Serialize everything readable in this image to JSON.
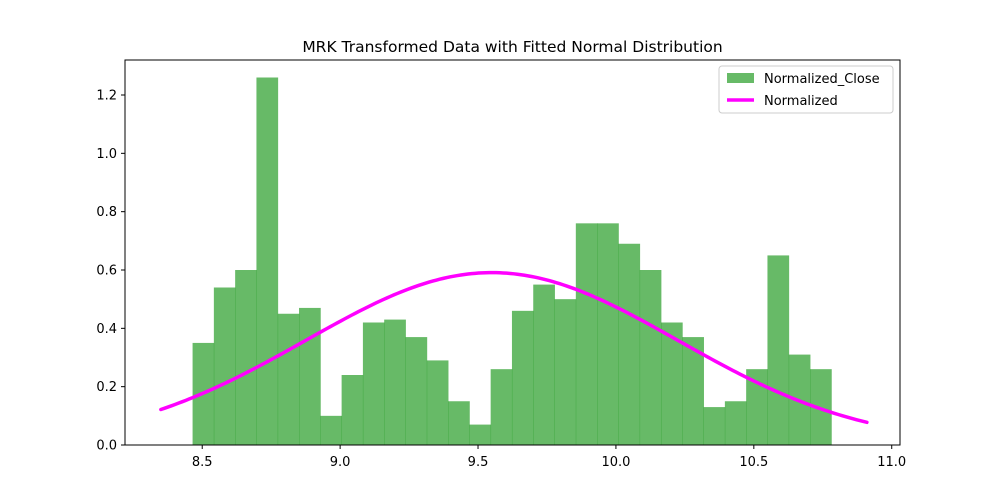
{
  "chart_data": {
    "type": "bar",
    "title": "MRK Transformed Data with Fitted Normal Distribution",
    "xlabel": "",
    "ylabel": "",
    "xlim": [
      8.22,
      11.03
    ],
    "ylim": [
      0.0,
      1.32
    ],
    "xticks": [
      8.5,
      9.0,
      9.5,
      10.0,
      10.5,
      11.0
    ],
    "xtick_labels": [
      "8.5",
      "9.0",
      "9.5",
      "10.0",
      "10.5",
      "11.0"
    ],
    "yticks": [
      0.0,
      0.2,
      0.4,
      0.6,
      0.8,
      1.0,
      1.2
    ],
    "ytick_labels": [
      "0.0",
      "0.2",
      "0.4",
      "0.6",
      "0.8",
      "1.0",
      "1.2"
    ],
    "grid": false,
    "legend_position": "top-right",
    "histogram": {
      "name": "Normalized_Close",
      "color": "#2ca02c",
      "opacity": 0.72,
      "bin_start": 8.465,
      "bin_width": 0.0772,
      "values": [
        0.35,
        0.54,
        0.6,
        1.26,
        0.45,
        0.47,
        0.1,
        0.24,
        0.42,
        0.43,
        0.37,
        0.29,
        0.15,
        0.07,
        0.26,
        0.46,
        0.55,
        0.5,
        0.76,
        0.76,
        0.69,
        0.6,
        0.42,
        0.37,
        0.13,
        0.15,
        0.26,
        0.65,
        0.31,
        0.26
      ]
    },
    "series": [
      {
        "name": "Normalized",
        "type": "line",
        "color": "#ff00ff",
        "distribution": "normal",
        "mean": 9.55,
        "std": 0.675,
        "x_range": [
          8.35,
          10.91
        ]
      }
    ]
  }
}
